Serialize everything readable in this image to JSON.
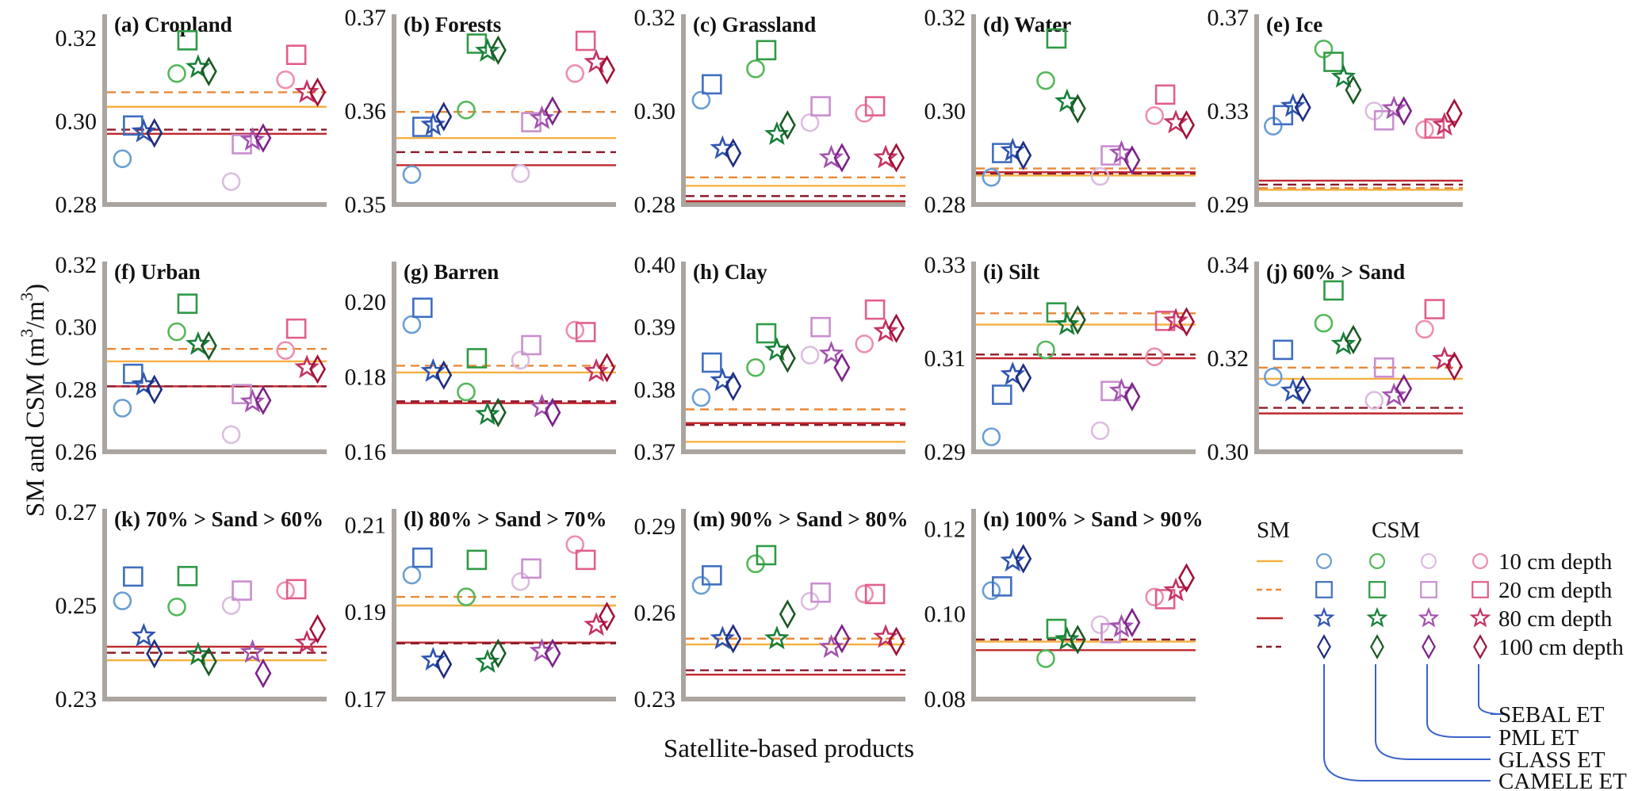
{
  "chart_data": {
    "type": "scatter",
    "title": "",
    "xlabel": "Satellite-based products",
    "ylabel": "SM and CSM (m3/m3)",
    "ylabel_parts": {
      "main": "SM and CSM (m",
      "sup1": "3",
      "mid": "/m",
      "sup2": "3",
      "end": ")"
    },
    "grid": false,
    "products": [
      "CAMELE ET",
      "GLASS ET",
      "PML ET",
      "SEBAL ET"
    ],
    "depths": [
      "10 cm depth",
      "20 cm depth",
      "80 cm depth",
      "100 cm depth"
    ],
    "legend": {
      "placement": "bottom-right",
      "sm_header": "SM",
      "csm_header": "CSM",
      "sm_styles": [
        {
          "depth": "10 cm depth",
          "color": "#f5b041",
          "dash": false
        },
        {
          "depth": "20 cm depth",
          "color": "#e8893a",
          "dash": true
        },
        {
          "depth": "80 cm depth",
          "color": "#c0272d",
          "dash": false
        },
        {
          "depth": "100 cm depth",
          "color": "#8b1a2b",
          "dash": true
        }
      ],
      "markers": [
        "circle",
        "square",
        "star",
        "diamond"
      ],
      "product_colors": [
        [
          "#6a9fd4",
          "#3f6fbf",
          "#2f55b0",
          "#1f2d80"
        ],
        [
          "#55b85a",
          "#2e9a45",
          "#17803a",
          "#1c5a25"
        ],
        [
          "#dcbde0",
          "#c98fcf",
          "#a354b0",
          "#7c2389"
        ],
        [
          "#ef8fae",
          "#e0608a",
          "#c43362",
          "#a01238"
        ]
      ]
    },
    "panels": [
      {
        "label": "(a) Cropland",
        "ylim": [
          0.28,
          0.325
        ],
        "yticks": [
          "0.28",
          "0.30",
          "0.32"
        ],
        "sm": [
          0.3035,
          0.307,
          0.297,
          0.298
        ],
        "csm": [
          [
            0.291,
            0.299,
            0.2975,
            0.2972
          ],
          [
            0.3115,
            0.3195,
            0.313,
            0.312
          ],
          [
            0.2855,
            0.2945,
            0.2955,
            0.296
          ],
          [
            0.31,
            0.316,
            0.307,
            0.307
          ]
        ]
      },
      {
        "label": "(b) Forests",
        "ylim": [
          0.35,
          0.37
        ],
        "yticks": [
          "0.35",
          "0.36",
          "0.37"
        ],
        "sm": [
          0.3571,
          0.3599,
          0.3542,
          0.3556
        ],
        "csm": [
          [
            0.3532,
            0.3583,
            0.3585,
            0.3594
          ],
          [
            0.3601,
            0.3672,
            0.3664,
            0.3665
          ],
          [
            0.3533,
            0.3588,
            0.3592,
            0.36
          ],
          [
            0.364,
            0.3675,
            0.3652,
            0.3644
          ]
        ]
      },
      {
        "label": "(c) Grassland",
        "ylim": [
          0.28,
          0.32
        ],
        "yticks": [
          "0.28",
          "0.30",
          "0.32"
        ],
        "sm": [
          0.284,
          0.2858,
          0.2807,
          0.2818
        ],
        "csm": [
          [
            0.3023,
            0.3057,
            0.292,
            0.291
          ],
          [
            0.309,
            0.313,
            0.295,
            0.297
          ],
          [
            0.2975,
            0.301,
            0.29,
            0.29
          ],
          [
            0.2995,
            0.301,
            0.29,
            0.29
          ]
        ]
      },
      {
        "label": "(d) Water",
        "ylim": [
          0.28,
          0.32
        ],
        "yticks": [
          "0.28",
          "0.30",
          "0.32"
        ],
        "sm": [
          0.2862,
          0.2877,
          0.2869,
          0.2866
        ],
        "csm": [
          [
            0.2858,
            0.291,
            0.2915,
            0.2905
          ],
          [
            0.3065,
            0.3155,
            0.302,
            0.3005
          ],
          [
            0.286,
            0.2905,
            0.291,
            0.2895
          ],
          [
            0.299,
            0.3035,
            0.2975,
            0.297
          ]
        ]
      },
      {
        "label": "(e) Ice",
        "ylim": [
          0.29,
          0.37
        ],
        "yticks": [
          "0.29",
          "0.33",
          "0.37"
        ],
        "sm": [
          0.2963,
          0.297,
          0.3002,
          0.2985
        ],
        "csm": [
          [
            0.3235,
            0.3282,
            0.332,
            0.3315
          ],
          [
            0.3565,
            0.351,
            0.3445,
            0.339
          ],
          [
            0.33,
            0.326,
            0.331,
            0.33
          ],
          [
            0.322,
            0.3225,
            0.324,
            0.329
          ]
        ]
      },
      {
        "label": "(f) Urban",
        "ylim": [
          0.26,
          0.32
        ],
        "yticks": [
          "0.26",
          "0.28",
          "0.30",
          "0.32"
        ],
        "sm": [
          0.289,
          0.293,
          0.281,
          0.281
        ],
        "csm": [
          [
            0.274,
            0.285,
            0.2815,
            0.28
          ],
          [
            0.2985,
            0.3075,
            0.2945,
            0.294
          ],
          [
            0.2655,
            0.2785,
            0.276,
            0.2765
          ],
          [
            0.2925,
            0.2995,
            0.287,
            0.2865
          ]
        ]
      },
      {
        "label": "(g) Barren",
        "ylim": [
          0.16,
          0.21
        ],
        "yticks": [
          "0.16",
          "0.18",
          "0.20"
        ],
        "sm": [
          0.1812,
          0.183,
          0.173,
          0.1735
        ],
        "csm": [
          [
            0.194,
            0.1985,
            0.1815,
            0.1805
          ],
          [
            0.176,
            0.185,
            0.17,
            0.1705
          ],
          [
            0.1845,
            0.1885,
            0.172,
            0.1705
          ],
          [
            0.1925,
            0.192,
            0.1815,
            0.1825
          ]
        ]
      },
      {
        "label": "(h) Clay",
        "ylim": [
          0.37,
          0.4
        ],
        "yticks": [
          "0.37",
          "0.38",
          "0.39",
          "0.40"
        ],
        "sm": [
          0.3716,
          0.3768,
          0.3746,
          0.3743
        ],
        "csm": [
          [
            0.3787,
            0.3843,
            0.3814,
            0.3805
          ],
          [
            0.3835,
            0.389,
            0.3863,
            0.385
          ],
          [
            0.3855,
            0.39,
            0.3857,
            0.3835
          ],
          [
            0.3873,
            0.3928,
            0.3893,
            0.3898
          ]
        ]
      },
      {
        "label": "(i) Silt",
        "ylim": [
          0.29,
          0.33
        ],
        "yticks": [
          "0.29",
          "0.31",
          "0.33"
        ],
        "sm": [
          0.3172,
          0.3196,
          0.31,
          0.3108
        ],
        "csm": [
          [
            0.2932,
            0.3022,
            0.3065,
            0.3058
          ],
          [
            0.3118,
            0.3198,
            0.3172,
            0.3182
          ],
          [
            0.2945,
            0.303,
            0.303,
            0.3018
          ],
          [
            0.3103,
            0.318,
            0.318,
            0.3178
          ]
        ]
      },
      {
        "label": "(j) 60% > Sand",
        "ylim": [
          0.3,
          0.34
        ],
        "yticks": [
          "0.30",
          "0.32",
          "0.34"
        ],
        "sm": [
          0.3156,
          0.318,
          0.3082,
          0.3094
        ],
        "csm": [
          [
            0.316,
            0.3218,
            0.313,
            0.3132
          ],
          [
            0.3275,
            0.3345,
            0.323,
            0.324
          ],
          [
            0.311,
            0.318,
            0.312,
            0.3135
          ],
          [
            0.3262,
            0.3305,
            0.3198,
            0.3183
          ]
        ]
      },
      {
        "label": "(k) 70% > Sand > 60%",
        "ylim": [
          0.23,
          0.27
        ],
        "yticks": [
          "0.23",
          "0.25",
          "0.27"
        ],
        "sm": [
          0.2383,
          0.2399,
          0.2412,
          0.2399
        ],
        "csm": [
          [
            0.251,
            0.2562,
            0.2435,
            0.2397
          ],
          [
            0.2497,
            0.2563,
            0.2395,
            0.238
          ],
          [
            0.25,
            0.2532,
            0.24,
            0.2355
          ],
          [
            0.2532,
            0.2535,
            0.242,
            0.245
          ]
        ]
      },
      {
        "label": "(l) 80% > Sand > 70%",
        "ylim": [
          0.17,
          0.213
        ],
        "yticks": [
          "0.17",
          "0.19",
          "0.21"
        ],
        "sm": [
          0.1915,
          0.1935,
          0.183,
          0.1828
        ],
        "csm": [
          [
            0.1985,
            0.2025,
            0.179,
            0.178
          ],
          [
            0.1935,
            0.202,
            0.1785,
            0.1805
          ],
          [
            0.197,
            0.2,
            0.181,
            0.1805
          ],
          [
            0.2055,
            0.202,
            0.187,
            0.189
          ]
        ]
      },
      {
        "label": "(m) 90% > Sand > 80%",
        "ylim": [
          0.23,
          0.295
        ],
        "yticks": [
          "0.23",
          "0.26",
          "0.29"
        ],
        "sm": [
          0.249,
          0.251,
          0.2385,
          0.24
        ],
        "csm": [
          [
            0.2695,
            0.273,
            0.251,
            0.251
          ],
          [
            0.277,
            0.28,
            0.251,
            0.2595
          ],
          [
            0.264,
            0.267,
            0.248,
            0.251
          ],
          [
            0.2665,
            0.2665,
            0.2515,
            0.25
          ]
        ]
      },
      {
        "label": "(n) 100% > Sand > 90%",
        "ylim": [
          0.08,
          0.124
        ],
        "yticks": [
          "0.08",
          "0.10",
          "0.12"
        ],
        "sm": [
          0.0935,
          0.094,
          0.0915,
          0.094
        ],
        "csm": [
          [
            0.1055,
            0.1065,
            0.1125,
            0.113
          ],
          [
            0.0895,
            0.0965,
            0.094,
            0.094
          ],
          [
            0.0975,
            0.0955,
            0.097,
            0.098
          ],
          [
            0.104,
            0.1035,
            0.1055,
            0.1085
          ]
        ]
      }
    ]
  }
}
